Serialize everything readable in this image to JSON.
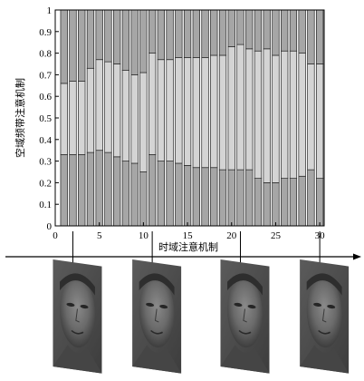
{
  "chart_data": {
    "type": "bar",
    "stacked": true,
    "normalized": true,
    "xlabel": "时域注意机制",
    "ylabel": "空域频带注意机制",
    "ylim": [
      0,
      1
    ],
    "yticks": [
      0,
      0.1,
      0.2,
      0.3,
      0.4,
      0.5,
      0.6,
      0.7,
      0.8,
      0.9,
      1
    ],
    "yticklabels": [
      "0",
      "0.1",
      "0.2",
      "0.3",
      "0.4",
      "0.5",
      "0.6",
      "0.7",
      "0.8",
      "0.9",
      "1"
    ],
    "xticks": [
      0,
      5,
      10,
      15,
      20,
      25,
      30
    ],
    "xticklabels": [
      "0",
      "5",
      "10",
      "15",
      "20",
      "25",
      "30"
    ],
    "xlim": [
      0,
      30.5
    ],
    "grid": false,
    "x": [
      1,
      2,
      3,
      4,
      5,
      6,
      7,
      8,
      9,
      10,
      11,
      12,
      13,
      14,
      15,
      16,
      17,
      18,
      19,
      20,
      21,
      22,
      23,
      24,
      25,
      26,
      27,
      28,
      29,
      30
    ],
    "series": [
      {
        "color": "#a6a6a6",
        "values": [
          0.33,
          0.33,
          0.33,
          0.34,
          0.35,
          0.34,
          0.32,
          0.3,
          0.29,
          0.25,
          0.33,
          0.3,
          0.3,
          0.29,
          0.28,
          0.27,
          0.27,
          0.27,
          0.26,
          0.26,
          0.26,
          0.26,
          0.22,
          0.2,
          0.2,
          0.22,
          0.22,
          0.23,
          0.26,
          0.22
        ]
      },
      {
        "color": "#d4d4d4",
        "values": [
          0.33,
          0.34,
          0.34,
          0.39,
          0.42,
          0.42,
          0.43,
          0.42,
          0.41,
          0.46,
          0.47,
          0.47,
          0.47,
          0.49,
          0.5,
          0.51,
          0.51,
          0.52,
          0.53,
          0.57,
          0.58,
          0.56,
          0.59,
          0.62,
          0.59,
          0.59,
          0.59,
          0.57,
          0.49,
          0.53
        ]
      },
      {
        "color": "#a6a6a6",
        "values": [
          0.34,
          0.33,
          0.33,
          0.27,
          0.23,
          0.24,
          0.25,
          0.28,
          0.3,
          0.29,
          0.2,
          0.23,
          0.23,
          0.22,
          0.22,
          0.22,
          0.22,
          0.21,
          0.21,
          0.17,
          0.16,
          0.18,
          0.19,
          0.18,
          0.21,
          0.19,
          0.19,
          0.2,
          0.25,
          0.25
        ]
      }
    ]
  },
  "timeline": {
    "frame_positions": [
      2,
      11,
      21,
      30
    ],
    "frames": [
      {
        "icon": "face-frame-icon"
      },
      {
        "icon": "face-frame-icon"
      },
      {
        "icon": "face-frame-icon"
      },
      {
        "icon": "face-frame-icon"
      }
    ]
  }
}
